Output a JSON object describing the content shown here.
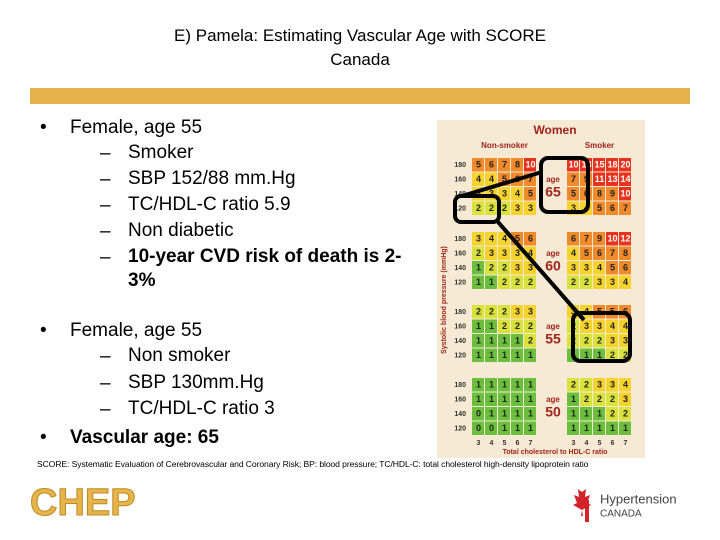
{
  "title": "E) Pamela: Estimating Vascular Age with SCORE Canada",
  "bullets": [
    {
      "text": "Female, age 55",
      "sub": [
        "Smoker",
        "SBP 152/88 mm.Hg",
        "TC/HDL-C ratio 5.9",
        "Non diabetic",
        "10-year CVD risk of death is 2-3%"
      ]
    },
    {
      "text": "Female, age 55",
      "sub": [
        "Non smoker",
        "SBP 130mm.Hg",
        "TC/HDL-C ratio 3"
      ]
    },
    {
      "text": "Vascular age: 65",
      "sub": []
    }
  ],
  "score_chart": {
    "title": "Women",
    "groups": [
      "Non-smoker",
      "Smoker"
    ],
    "age_label": "age",
    "ages": [
      "65",
      "60",
      "55",
      "50"
    ],
    "sbp": [
      "180",
      "160",
      "140",
      "120"
    ],
    "ratios": [
      "3",
      "4",
      "5",
      "6",
      "7"
    ],
    "y_axis_label": "Systolic blood pressure (mmHg)",
    "x_axis_label": "Total cholesterol to HDL-C ratio",
    "cells": [
      [
        [
          [
            5,
            6,
            7,
            8,
            10
          ],
          [
            4,
            4,
            5,
            6,
            7
          ],
          [
            3,
            3,
            3,
            4,
            5
          ],
          [
            2,
            2,
            2,
            3,
            3
          ]
        ],
        [
          [
            10,
            13,
            15,
            18,
            20
          ],
          [
            7,
            9,
            11,
            13,
            14
          ],
          [
            5,
            6,
            8,
            9,
            10
          ],
          [
            3,
            4,
            5,
            6,
            7
          ]
        ]
      ],
      [
        [
          [
            3,
            4,
            4,
            5,
            6
          ],
          [
            2,
            3,
            3,
            3,
            4
          ],
          [
            1,
            2,
            2,
            3,
            3
          ],
          [
            1,
            1,
            2,
            2,
            2
          ]
        ],
        [
          [
            6,
            7,
            9,
            10,
            12
          ],
          [
            4,
            5,
            6,
            7,
            8
          ],
          [
            3,
            3,
            4,
            5,
            6
          ],
          [
            2,
            2,
            3,
            3,
            4
          ]
        ]
      ],
      [
        [
          [
            2,
            2,
            2,
            3,
            3
          ],
          [
            1,
            1,
            2,
            2,
            2
          ],
          [
            1,
            1,
            1,
            1,
            2
          ],
          [
            1,
            1,
            1,
            1,
            1
          ]
        ],
        [
          [
            3,
            4,
            5,
            5,
            6
          ],
          [
            2,
            3,
            3,
            4,
            4
          ],
          [
            2,
            2,
            2,
            3,
            3
          ],
          [
            1,
            1,
            1,
            2,
            2
          ]
        ]
      ],
      [
        [
          [
            1,
            1,
            1,
            1,
            1
          ],
          [
            1,
            1,
            1,
            1,
            1
          ],
          [
            0,
            1,
            1,
            1,
            1
          ],
          [
            0,
            0,
            1,
            1,
            1
          ]
        ],
        [
          [
            2,
            2,
            3,
            3,
            4
          ],
          [
            1,
            2,
            2,
            2,
            3
          ],
          [
            1,
            1,
            1,
            2,
            2
          ],
          [
            1,
            1,
            1,
            1,
            1
          ]
        ]
      ]
    ]
  },
  "footnote": "SCORE: Systematic Evaluation of Cerebrovascular and Coronary Risk; BP: blood pressure; TC/HDL-C: total cholesterol high-density lipoprotein ratio",
  "logos": {
    "left": "CHEP",
    "right_main": "Hypertension",
    "right_sub": "CANADA"
  }
}
